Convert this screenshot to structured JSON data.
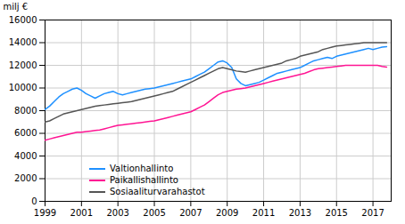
{
  "chart_data": {
    "type": "line",
    "ylabel": "milj €",
    "xlim": [
      1999,
      2018
    ],
    "ylim": [
      0,
      16000
    ],
    "xticks": [
      1999,
      2001,
      2003,
      2005,
      2007,
      2009,
      2011,
      2013,
      2015,
      2017
    ],
    "yticks": [
      0,
      2000,
      4000,
      6000,
      8000,
      10000,
      12000,
      14000,
      16000
    ],
    "grid": true,
    "legend": "lower left",
    "x": [
      1999.0,
      1999.25,
      1999.5,
      1999.75,
      2000.0,
      2000.25,
      2000.5,
      2000.75,
      2001.0,
      2001.25,
      2001.5,
      2001.75,
      2002.0,
      2002.25,
      2002.5,
      2002.75,
      2003.0,
      2003.25,
      2003.5,
      2003.75,
      2004.0,
      2004.25,
      2004.5,
      2004.75,
      2005.0,
      2005.25,
      2005.5,
      2005.75,
      2006.0,
      2006.25,
      2006.5,
      2006.75,
      2007.0,
      2007.25,
      2007.5,
      2007.75,
      2008.0,
      2008.25,
      2008.5,
      2008.75,
      2009.0,
      2009.25,
      2009.5,
      2009.75,
      2010.0,
      2010.25,
      2010.5,
      2010.75,
      2011.0,
      2011.25,
      2011.5,
      2011.75,
      2012.0,
      2012.25,
      2012.5,
      2012.75,
      2013.0,
      2013.25,
      2013.5,
      2013.75,
      2014.0,
      2014.25,
      2014.5,
      2014.75,
      2015.0,
      2015.25,
      2015.5,
      2015.75,
      2016.0,
      2016.25,
      2016.5,
      2016.75,
      2017.0,
      2017.25,
      2017.5,
      2017.75
    ],
    "series": [
      {
        "name": "Valtionhallinto",
        "color": "#1e90ff",
        "values": [
          8100,
          8400,
          8800,
          9200,
          9500,
          9700,
          9900,
          10000,
          9800,
          9500,
          9300,
          9100,
          9300,
          9500,
          9600,
          9700,
          9500,
          9400,
          9500,
          9600,
          9700,
          9800,
          9900,
          9950,
          10000,
          10100,
          10200,
          10300,
          10400,
          10500,
          10600,
          10700,
          10800,
          11000,
          11200,
          11400,
          11700,
          12000,
          12300,
          12400,
          12200,
          11800,
          10800,
          10400,
          10200,
          10300,
          10400,
          10500,
          10700,
          10900,
          11100,
          11300,
          11400,
          11500,
          11600,
          11700,
          11800,
          12000,
          12200,
          12400,
          12500,
          12600,
          12700,
          12600,
          12800,
          12900,
          13000,
          13100,
          13200,
          13300,
          13400,
          13500,
          13400,
          13500,
          13600,
          13650
        ]
      },
      {
        "name": "Paikallishallinto",
        "color": "#ff1493",
        "values": [
          5400,
          5500,
          5600,
          5700,
          5800,
          5900,
          6000,
          6100,
          6100,
          6150,
          6200,
          6250,
          6300,
          6400,
          6500,
          6600,
          6700,
          6750,
          6800,
          6850,
          6900,
          6950,
          7000,
          7050,
          7100,
          7200,
          7300,
          7400,
          7500,
          7600,
          7700,
          7800,
          7900,
          8100,
          8300,
          8500,
          8800,
          9100,
          9400,
          9600,
          9700,
          9800,
          9900,
          9950,
          10000,
          10100,
          10200,
          10300,
          10400,
          10500,
          10600,
          10700,
          10800,
          10900,
          11000,
          11100,
          11200,
          11300,
          11450,
          11600,
          11700,
          11750,
          11800,
          11850,
          11900,
          11950,
          12000,
          12000,
          12000,
          12000,
          12000,
          12000,
          12000,
          12000,
          11900,
          11850
        ]
      },
      {
        "name": "Sosiaaliturvarahastot",
        "color": "#555555",
        "values": [
          7000,
          7100,
          7300,
          7500,
          7700,
          7800,
          7900,
          8000,
          8100,
          8200,
          8300,
          8400,
          8450,
          8500,
          8550,
          8600,
          8650,
          8700,
          8750,
          8800,
          8900,
          9000,
          9100,
          9200,
          9300,
          9400,
          9500,
          9600,
          9700,
          9900,
          10100,
          10300,
          10500,
          10700,
          10900,
          11100,
          11300,
          11500,
          11700,
          11800,
          11700,
          11600,
          11500,
          11450,
          11400,
          11500,
          11600,
          11700,
          11800,
          11900,
          12000,
          12100,
          12200,
          12400,
          12500,
          12600,
          12800,
          12900,
          13000,
          13100,
          13200,
          13400,
          13500,
          13600,
          13700,
          13750,
          13800,
          13850,
          13900,
          13950,
          14000,
          14000,
          14000,
          14000,
          14000,
          14000
        ]
      }
    ]
  }
}
